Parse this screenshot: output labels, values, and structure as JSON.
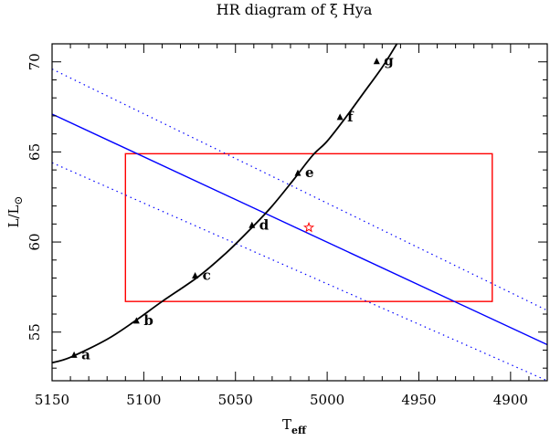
{
  "chart_data": {
    "type": "line",
    "title": "HR diagram of ξ Hya",
    "xlabel": "T",
    "xlabel_sub": "eff",
    "ylabel": "L/L",
    "ylabel_sym": "⊙",
    "xlim": [
      5150,
      4880
    ],
    "ylim": [
      52.3,
      71.0
    ],
    "x_ticks": [
      5150,
      5100,
      5050,
      5000,
      4950,
      4900
    ],
    "y_ticks": [
      55,
      60,
      65,
      70
    ],
    "grid": false,
    "track": {
      "color": "#000000",
      "points": [
        [
          5150,
          53.3
        ],
        [
          5140,
          53.6
        ],
        [
          5120,
          54.6
        ],
        [
          5105,
          55.6
        ],
        [
          5090,
          56.7
        ],
        [
          5070,
          58.1
        ],
        [
          5055,
          59.4
        ],
        [
          5042,
          60.7
        ],
        [
          5030,
          62.0
        ],
        [
          5018,
          63.5
        ],
        [
          5008,
          64.8
        ],
        [
          5000,
          65.6
        ],
        [
          4990,
          66.9
        ],
        [
          4980,
          68.3
        ],
        [
          4970,
          69.7
        ],
        [
          4962,
          71.0
        ]
      ]
    },
    "track_points": [
      {
        "label": "a",
        "x": 5138,
        "y": 53.7
      },
      {
        "label": "b",
        "x": 5104,
        "y": 55.6
      },
      {
        "label": "c",
        "x": 5072,
        "y": 58.1
      },
      {
        "label": "d",
        "x": 5041,
        "y": 60.9
      },
      {
        "label": "e",
        "x": 5016,
        "y": 63.8
      },
      {
        "label": "f",
        "x": 4993,
        "y": 66.9
      },
      {
        "label": "g",
        "x": 4973,
        "y": 70.0
      }
    ],
    "radius_line": {
      "color": "#0000ff",
      "points": [
        [
          5150,
          67.1
        ],
        [
          4880,
          54.3
        ]
      ]
    },
    "radius_bounds": {
      "color": "#0000ff",
      "style": "dotted",
      "upper": [
        [
          5150,
          69.6
        ],
        [
          4880,
          56.2
        ]
      ],
      "lower": [
        [
          5150,
          64.4
        ],
        [
          4880,
          52.3
        ]
      ]
    },
    "error_box": {
      "color": "#ff0000",
      "x": [
        5110,
        4910
      ],
      "y": [
        56.7,
        64.9
      ]
    },
    "star": {
      "color": "#ff0000",
      "x": 5010,
      "y": 60.8
    }
  }
}
